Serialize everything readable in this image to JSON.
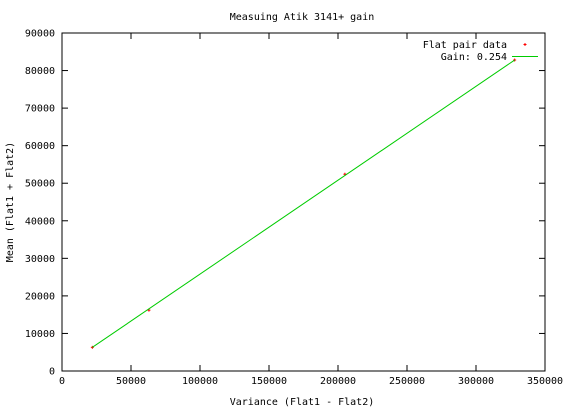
{
  "chart_data": {
    "type": "scatter",
    "title": "Measuing Atik 3141+ gain",
    "xlabel": "Variance (Flat1 - Flat2)",
    "ylabel": "Mean (Flat1 + Flat2)",
    "xlim": [
      0,
      350000
    ],
    "ylim": [
      0,
      90000
    ],
    "x_ticks": [
      "0",
      "50000",
      "100000",
      "150000",
      "200000",
      "250000",
      "300000",
      "350000"
    ],
    "y_ticks": [
      "0",
      "10000",
      "20000",
      "30000",
      "40000",
      "50000",
      "60000",
      "70000",
      "80000",
      "90000"
    ],
    "grid": false,
    "legend_position": "top-right",
    "series": [
      {
        "name": "Flat pair data",
        "kind": "points",
        "color": "#ff0000",
        "x": [
          22000,
          63000,
          205000,
          328000
        ],
        "y": [
          6300,
          16200,
          52400,
          82800
        ]
      },
      {
        "name": "Gain: 0.254",
        "kind": "line",
        "color": "#00cc00",
        "x": [
          22000,
          328000
        ],
        "y": [
          6300,
          82800
        ]
      }
    ]
  }
}
